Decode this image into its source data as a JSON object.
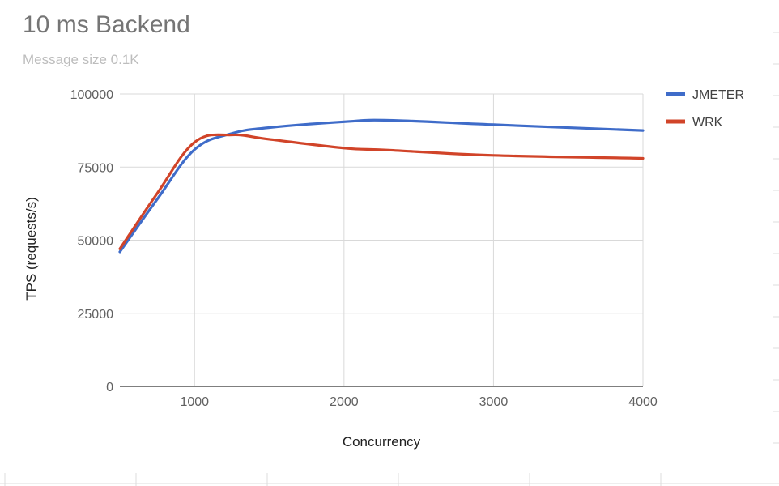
{
  "chart_data": {
    "type": "line",
    "title": "10 ms Backend",
    "subtitle": "Message size 0.1K",
    "xlabel": "Concurrency",
    "ylabel": "TPS (requests/s)",
    "xlim": [
      500,
      4000
    ],
    "ylim": [
      0,
      100000
    ],
    "x_ticks": [
      "1000",
      "2000",
      "3000",
      "4000"
    ],
    "y_ticks": [
      "0",
      "25000",
      "50000",
      "75000",
      "100000"
    ],
    "grid": true,
    "legend_position": "right",
    "series": [
      {
        "name": "JMETER",
        "color": "#3f6cc9",
        "x": [
          500,
          750,
          1000,
          1250,
          1500,
          2000,
          2300,
          3000,
          4000
        ],
        "y": [
          46000,
          64000,
          81000,
          86500,
          88500,
          90500,
          91000,
          89500,
          87500
        ]
      },
      {
        "name": "WRK",
        "color": "#d14429",
        "x": [
          500,
          750,
          1000,
          1250,
          1500,
          2000,
          2300,
          3000,
          4000
        ],
        "y": [
          47000,
          66000,
          83500,
          86000,
          84500,
          81500,
          80800,
          79000,
          78000
        ]
      }
    ]
  }
}
